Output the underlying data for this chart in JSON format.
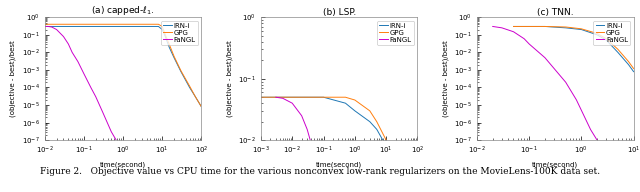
{
  "figure_width": 6.4,
  "figure_height": 1.92,
  "dpi": 100,
  "subplots": [
    {
      "title": "(a) capped-$\\ell_1$.",
      "xlabel": "time(second)",
      "ylabel": "(objective - best)/best",
      "xlim_log": [
        -2,
        2
      ],
      "ylim_log": [
        -7,
        0
      ],
      "legend_labels": [
        "IRN-i",
        "GPG",
        "FaNGL"
      ],
      "lines": {
        "IRN-i": {
          "x": [
            0.01,
            0.012,
            0.015,
            0.02,
            0.03,
            0.05,
            0.1,
            0.3,
            0.5,
            1.0,
            2.0,
            5.0,
            8.0,
            10.0,
            12.0,
            15.0,
            20.0,
            30.0,
            50.0,
            70.0,
            100.0
          ],
          "y": [
            0.3,
            0.3,
            0.3,
            0.3,
            0.3,
            0.3,
            0.3,
            0.3,
            0.3,
            0.3,
            0.3,
            0.3,
            0.3,
            0.2,
            0.08,
            0.02,
            0.005,
            0.0008,
            0.0001,
            3e-05,
            8e-06
          ]
        },
        "GPG": {
          "x": [
            0.01,
            0.015,
            0.02,
            0.03,
            0.05,
            0.1,
            0.5,
            1.0,
            2.0,
            5.0,
            8.0,
            10.0,
            12.0,
            15.0,
            20.0,
            30.0,
            50.0,
            70.0,
            100.0
          ],
          "y": [
            0.4,
            0.4,
            0.4,
            0.4,
            0.4,
            0.4,
            0.4,
            0.4,
            0.4,
            0.4,
            0.4,
            0.3,
            0.1,
            0.03,
            0.006,
            0.0009,
            0.00012,
            3e-05,
            8e-06
          ]
        },
        "FaNGL": {
          "x": [
            0.01,
            0.012,
            0.015,
            0.02,
            0.03,
            0.04,
            0.05,
            0.07,
            0.1,
            0.15,
            0.2,
            0.3,
            0.5,
            0.8,
            1.0,
            1.5,
            2.0,
            3.0
          ],
          "y": [
            0.3,
            0.3,
            0.28,
            0.2,
            0.08,
            0.03,
            0.01,
            0.003,
            0.0006,
            0.0001,
            3e-05,
            4e-06,
            3e-07,
            5e-08,
            2e-08,
            8e-09,
            4e-09,
            2e-09
          ]
        }
      }
    },
    {
      "title": "(b) LSP.",
      "xlabel": "time(second)",
      "ylabel": "(objective - best)/best",
      "xlim_log": [
        -3,
        2
      ],
      "ylim_log": [
        -2,
        0
      ],
      "legend_labels": [
        "IRN-i",
        "GPG",
        "FaNGL"
      ],
      "lines": {
        "IRN-i": {
          "x": [
            0.001,
            0.003,
            0.005,
            0.01,
            0.03,
            0.1,
            0.5,
            1.0,
            3.0,
            5.0,
            10.0,
            30.0,
            50.0,
            100.0,
            200.0
          ],
          "y": [
            0.05,
            0.05,
            0.05,
            0.05,
            0.05,
            0.05,
            0.04,
            0.03,
            0.02,
            0.015,
            0.008,
            0.002,
            0.0008,
            0.0002,
            0.0001
          ]
        },
        "GPG": {
          "x": [
            0.001,
            0.003,
            0.005,
            0.01,
            0.05,
            0.3,
            0.5,
            1.0,
            3.0,
            5.0,
            10.0,
            20.0,
            30.0,
            50.0,
            100.0,
            200.0
          ],
          "y": [
            0.05,
            0.05,
            0.05,
            0.05,
            0.05,
            0.05,
            0.05,
            0.045,
            0.03,
            0.02,
            0.01,
            0.005,
            0.002,
            0.0008,
            0.0002,
            0.0001
          ]
        },
        "FaNGL": {
          "x": [
            0.003,
            0.005,
            0.01,
            0.02,
            0.03,
            0.05,
            0.1,
            0.2,
            0.3,
            0.5,
            0.8,
            1.0,
            2.0,
            3.0,
            5.0,
            8.0,
            10.0
          ],
          "y": [
            0.05,
            0.048,
            0.04,
            0.025,
            0.015,
            0.006,
            0.001,
            0.00015,
            3e-05,
            4e-06,
            5e-07,
            2e-07,
            5e-08,
            2e-08,
            8e-09,
            4e-09,
            2e-09
          ]
        }
      }
    },
    {
      "title": "(c) TNN.",
      "xlabel": "time(second)",
      "ylabel": "(objective - best)/best",
      "xlim_log": [
        -2,
        1
      ],
      "ylim_log": [
        -7,
        0
      ],
      "legend_labels": [
        "IRN-i",
        "GPG",
        "FaNGL"
      ],
      "lines": {
        "IRN-i": {
          "x": [
            0.05,
            0.08,
            0.1,
            0.2,
            0.5,
            1.0,
            2.0,
            3.0,
            5.0,
            8.0,
            10.0
          ],
          "y": [
            0.3,
            0.3,
            0.3,
            0.3,
            0.25,
            0.2,
            0.1,
            0.05,
            0.01,
            0.002,
            0.0008
          ]
        },
        "GPG": {
          "x": [
            0.05,
            0.08,
            0.1,
            0.2,
            0.5,
            1.0,
            2.0,
            3.0,
            5.0,
            8.0,
            10.0
          ],
          "y": [
            0.3,
            0.3,
            0.3,
            0.3,
            0.28,
            0.22,
            0.12,
            0.06,
            0.015,
            0.003,
            0.0012
          ]
        },
        "FaNGL": {
          "x": [
            0.02,
            0.03,
            0.05,
            0.08,
            0.1,
            0.2,
            0.5,
            0.8,
            1.0,
            1.5,
            2.0,
            3.0,
            4.0,
            5.0
          ],
          "y": [
            0.3,
            0.25,
            0.15,
            0.06,
            0.03,
            0.005,
            0.0002,
            2e-05,
            5e-06,
            4e-07,
            1e-07,
            3e-08,
            1e-08,
            6e-09
          ]
        }
      }
    }
  ],
  "line_colors": {
    "IRN-i": "#1f77b4",
    "GPG": "#ff7f0e",
    "FaNGL": "#cc00cc"
  },
  "caption": "Figure 2.   Objective value vs CPU time for the various nonconvex low-rank regularizers on the MovieLens-100K data set.",
  "caption_fontsize": 6.5,
  "background_color": "#ffffff",
  "tick_label_fontsize": 5,
  "axis_label_fontsize": 5,
  "legend_fontsize": 5,
  "title_fontsize": 6.5,
  "line_width": 0.7
}
